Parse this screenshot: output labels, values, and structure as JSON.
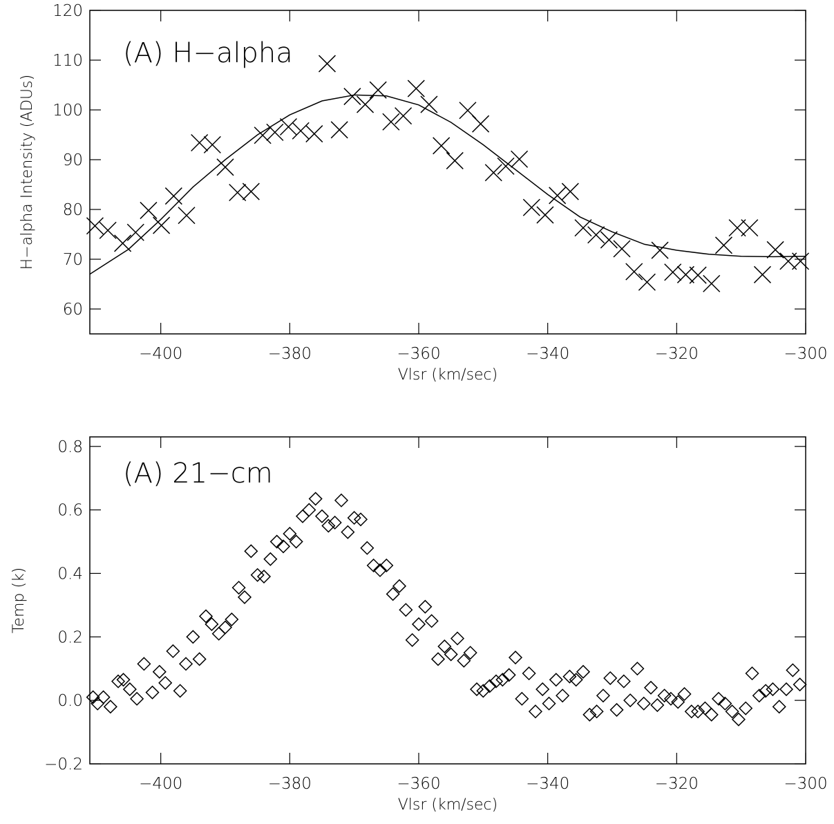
{
  "chart_data": [
    {
      "type": "scatter",
      "title": "(A) H−alpha",
      "x_label": "Vlsr (km/sec)",
      "y_label": "H−alpha Intensity (ADUs)",
      "xlim": [
        -411,
        -300
      ],
      "ylim": [
        55,
        120
      ],
      "xticks": [
        {
          "value": -400,
          "label": "−400"
        },
        {
          "value": -380,
          "label": "−380"
        },
        {
          "value": -360,
          "label": "−360"
        },
        {
          "value": -340,
          "label": "−340"
        },
        {
          "value": -320,
          "label": "−320"
        },
        {
          "value": -300,
          "label": "−300"
        }
      ],
      "yticks": [
        60,
        70,
        80,
        90,
        100,
        110,
        120
      ],
      "marker": "x",
      "color": "#000000",
      "points": {
        "x": [
          -410.2,
          -408.2,
          -405.9,
          -403.9,
          -401.9,
          -399.9,
          -398.0,
          -396.0,
          -394.0,
          -392.0,
          -390.0,
          -388.1,
          -386.0,
          -384.2,
          -382.3,
          -380.2,
          -378.3,
          -376.2,
          -374.2,
          -372.3,
          -370.3,
          -368.3,
          -366.3,
          -364.3,
          -362.4,
          -360.4,
          -358.4,
          -356.5,
          -354.4,
          -352.4,
          -350.4,
          -348.4,
          -346.5,
          -344.4,
          -342.5,
          -340.4,
          -338.5,
          -336.5,
          -334.5,
          -332.5,
          -330.5,
          -328.5,
          -326.6,
          -324.6,
          -322.6,
          -320.6,
          -318.6,
          -316.7,
          -314.6,
          -312.7,
          -310.6,
          -308.7,
          -306.7,
          -304.7,
          -302.7,
          -300.8
        ],
        "y": [
          76.7,
          75.8,
          73.2,
          75.4,
          79.8,
          76.8,
          82.7,
          78.8,
          93.4,
          93.0,
          88.5,
          83.4,
          83.6,
          94.9,
          95.5,
          96.6,
          95.8,
          95.2,
          109.3,
          96.0,
          102.7,
          101.1,
          104.0,
          97.6,
          98.8,
          104.3,
          101.1,
          92.8,
          89.8,
          99.9,
          97.2,
          87.4,
          88.7,
          90.1,
          80.4,
          78.9,
          82.8,
          83.6,
          76.3,
          74.9,
          73.9,
          72.1,
          67.5,
          65.4,
          71.8,
          67.4,
          66.9,
          66.8,
          65.1,
          72.8,
          76.3,
          76.3,
          66.9,
          71.9,
          69.6,
          69.6
        ]
      },
      "fit": {
        "x": [
          -411,
          -405,
          -400,
          -395,
          -390,
          -385,
          -380,
          -375,
          -370,
          -365,
          -360,
          -355,
          -350,
          -345,
          -340,
          -335,
          -330,
          -325,
          -320,
          -315,
          -310,
          -305,
          -300
        ],
        "y": [
          67,
          72,
          78,
          84.5,
          90,
          95,
          99,
          101.8,
          103,
          102.8,
          101,
          97.5,
          93,
          88,
          83,
          78.5,
          75.5,
          73,
          71.8,
          71,
          70.6,
          70.5,
          70.6
        ]
      }
    },
    {
      "type": "scatter",
      "title": "(A) 21−cm",
      "x_label": "Vlsr (km/sec)",
      "y_label": "Temp (k)",
      "xlim": [
        -411,
        -300
      ],
      "ylim": [
        -0.2,
        0.83
      ],
      "xticks": [
        {
          "value": -400,
          "label": "−400"
        },
        {
          "value": -380,
          "label": "−380"
        },
        {
          "value": -360,
          "label": "−360"
        },
        {
          "value": -340,
          "label": "−340"
        },
        {
          "value": -320,
          "label": "−320"
        },
        {
          "value": -300,
          "label": "−300"
        }
      ],
      "yticks": [
        {
          "value": -0.2,
          "label": "−0.2"
        },
        {
          "value": 0,
          "label": "0.0"
        },
        0.2,
        0.4,
        0.6,
        0.8
      ],
      "marker": "diamond",
      "color": "#000000",
      "points": {
        "x": [
          -410.5,
          -409.8,
          -408.9,
          -407.8,
          -406.6,
          -405.8,
          -404.8,
          -403.7,
          -402.6,
          -401.3,
          -400.2,
          -399.3,
          -398.1,
          -397.0,
          -396.1,
          -395.0,
          -394.0,
          -393.0,
          -392.1,
          -391.0,
          -390.0,
          -389.0,
          -387.9,
          -387.0,
          -386.0,
          -385.0,
          -384.0,
          -383.0,
          -382.0,
          -381.0,
          -380.0,
          -379.0,
          -378.0,
          -377.0,
          -376.0,
          -375.0,
          -374.0,
          -373.0,
          -372.0,
          -371.0,
          -370.0,
          -369.0,
          -368.0,
          -367.0,
          -366.0,
          -365.0,
          -364.0,
          -363.0,
          -362.0,
          -361.0,
          -360.0,
          -359.0,
          -358.0,
          -357.0,
          -356.0,
          -355.0,
          -354.0,
          -353.0,
          -352.0,
          -351.0,
          -350.0,
          -349.0,
          -348.0,
          -347.0,
          -346.0,
          -345.0,
          -344.0,
          -342.9,
          -341.9,
          -340.8,
          -339.8,
          -338.7,
          -337.7,
          -336.6,
          -335.6,
          -334.5,
          -333.5,
          -332.4,
          -331.4,
          -330.3,
          -329.3,
          -328.2,
          -327.2,
          -326.1,
          -325.1,
          -324.0,
          -323.0,
          -321.9,
          -320.9,
          -319.8,
          -318.8,
          -317.7,
          -316.7,
          -315.6,
          -314.6,
          -313.5,
          -312.5,
          -311.4,
          -310.4,
          -309.3,
          -308.3,
          -307.2,
          -306.2,
          -305.1,
          -304.1,
          -303.0,
          -302.0,
          -300.9
        ],
        "y": [
          0.01,
          -0.01,
          0.01,
          -0.02,
          0.06,
          0.065,
          0.035,
          0.005,
          0.115,
          0.025,
          0.09,
          0.055,
          0.155,
          0.03,
          0.115,
          0.2,
          0.13,
          0.265,
          0.24,
          0.21,
          0.23,
          0.255,
          0.355,
          0.325,
          0.47,
          0.395,
          0.39,
          0.445,
          0.5,
          0.485,
          0.525,
          0.5,
          0.58,
          0.6,
          0.635,
          0.58,
          0.55,
          0.56,
          0.63,
          0.53,
          0.575,
          0.57,
          0.48,
          0.425,
          0.41,
          0.425,
          0.335,
          0.36,
          0.285,
          0.19,
          0.24,
          0.295,
          0.25,
          0.13,
          0.17,
          0.145,
          0.195,
          0.125,
          0.15,
          0.035,
          0.03,
          0.045,
          0.06,
          0.065,
          0.08,
          0.135,
          0.005,
          0.085,
          -0.035,
          0.035,
          -0.01,
          0.065,
          0.015,
          0.075,
          0.065,
          0.09,
          -0.045,
          -0.035,
          0.015,
          0.07,
          -0.03,
          0.06,
          0.0,
          0.1,
          -0.01,
          0.04,
          -0.015,
          0.015,
          0.005,
          -0.005,
          0.02,
          -0.035,
          -0.035,
          -0.025,
          -0.045,
          0.005,
          -0.01,
          -0.035,
          -0.06,
          -0.025,
          0.085,
          0.015,
          0.03,
          0.035,
          -0.02,
          0.035,
          0.095,
          0.05
        ]
      }
    }
  ]
}
